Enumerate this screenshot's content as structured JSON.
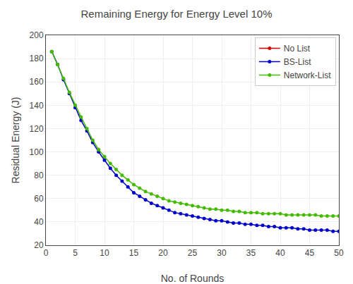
{
  "chart_data": {
    "type": "line",
    "title": "Remaining Energy for Energy Level 10%",
    "x_label": "No. of Rounds",
    "y_label": "Residual Energy (J)",
    "x": [
      1,
      2,
      3,
      4,
      5,
      6,
      7,
      8,
      9,
      10,
      11,
      12,
      13,
      14,
      15,
      16,
      17,
      18,
      19,
      20,
      21,
      22,
      23,
      24,
      25,
      26,
      27,
      28,
      29,
      30,
      31,
      32,
      33,
      34,
      35,
      36,
      37,
      38,
      39,
      40,
      41,
      42,
      43,
      44,
      45,
      46,
      47,
      48,
      49,
      50
    ],
    "series": [
      {
        "name": "No List",
        "color": "#dd0000",
        "values": [
          null,
          null,
          null,
          null,
          null,
          null,
          null,
          null,
          null,
          null,
          null,
          null,
          null,
          null,
          null,
          null,
          null,
          null,
          null,
          null,
          null,
          null,
          null,
          null,
          null,
          null,
          null,
          null,
          null,
          null,
          null,
          null,
          null,
          null,
          null,
          null,
          null,
          null,
          null,
          null,
          null,
          null,
          null,
          null,
          null,
          null,
          null,
          null,
          null,
          null
        ]
      },
      {
        "name": "BS-List",
        "color": "#0000cc",
        "values": [
          186,
          175,
          162,
          150,
          138,
          127,
          118,
          108,
          100,
          93,
          86,
          80,
          75,
          70,
          65,
          62,
          59,
          56,
          54,
          52,
          50,
          48,
          47,
          46,
          45,
          44,
          43,
          42,
          41,
          41,
          40,
          39,
          39,
          38,
          38,
          37,
          37,
          36,
          36,
          35,
          35,
          35,
          34,
          34,
          33,
          33,
          33,
          33,
          32,
          32
        ]
      },
      {
        "name": "Network-List",
        "color": "#44bb00",
        "values": [
          186,
          175,
          163,
          151,
          140,
          130,
          120,
          110,
          102,
          96,
          90,
          85,
          80,
          76,
          72,
          69,
          66,
          64,
          62,
          60,
          58,
          57,
          56,
          55,
          54,
          53,
          52,
          51,
          51,
          50,
          50,
          49,
          49,
          48,
          48,
          48,
          47,
          47,
          47,
          47,
          46,
          46,
          46,
          46,
          46,
          46,
          45,
          45,
          45,
          45
        ]
      }
    ],
    "marker": "circle",
    "xlim": [
      0,
      50
    ],
    "ylim": [
      20,
      200
    ],
    "xticks": [
      0,
      5,
      10,
      15,
      20,
      25,
      30,
      35,
      40,
      45,
      50
    ],
    "yticks": [
      20,
      40,
      60,
      80,
      100,
      120,
      140,
      160,
      180,
      200
    ],
    "grid": true,
    "legend": "upper right"
  }
}
